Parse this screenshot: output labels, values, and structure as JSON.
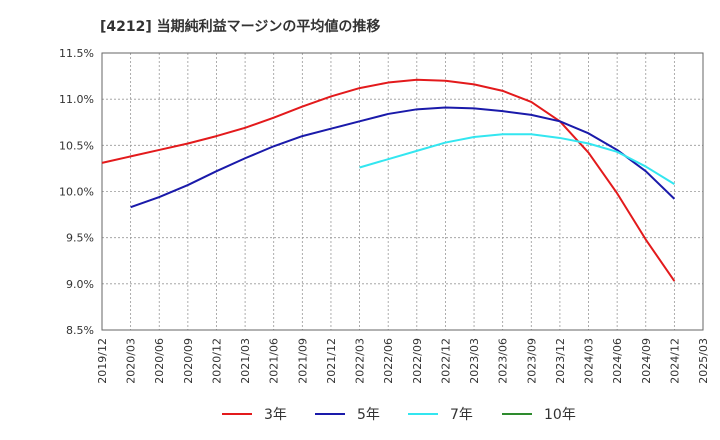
{
  "chart_data": {
    "type": "line",
    "title": "[4212]  当期純利益マージンの平均値の推移",
    "xlabel": "",
    "ylabel": "",
    "ylim": [
      8.5,
      11.5
    ],
    "yticks": [
      "11.5%",
      "11.0%",
      "10.5%",
      "10.0%",
      "9.5%",
      "9.0%",
      "8.5%"
    ],
    "categories": [
      "2019/12",
      "2020/03",
      "2020/06",
      "2020/09",
      "2020/12",
      "2021/03",
      "2021/06",
      "2021/09",
      "2021/12",
      "2022/03",
      "2022/06",
      "2022/09",
      "2022/12",
      "2023/03",
      "2023/06",
      "2023/09",
      "2023/12",
      "2024/03",
      "2024/06",
      "2024/09",
      "2024/12",
      "2025/03"
    ],
    "grid": true,
    "legend_position": "bottom",
    "series": [
      {
        "name": "3年",
        "color": "#e31a1c",
        "values": [
          10.31,
          10.38,
          10.45,
          10.52,
          10.6,
          10.69,
          10.8,
          10.92,
          11.03,
          11.12,
          11.18,
          11.21,
          11.2,
          11.16,
          11.09,
          10.97,
          10.76,
          10.42,
          9.98,
          9.48,
          9.03,
          null
        ]
      },
      {
        "name": "5年",
        "color": "#1a1aaa",
        "values": [
          null,
          9.83,
          9.94,
          10.07,
          10.22,
          10.36,
          10.49,
          10.6,
          10.68,
          10.76,
          10.84,
          10.89,
          10.91,
          10.9,
          10.87,
          10.83,
          10.76,
          10.63,
          10.45,
          10.22,
          9.92,
          null
        ]
      },
      {
        "name": "7年",
        "color": "#33e6f0",
        "values": [
          null,
          null,
          null,
          null,
          null,
          null,
          null,
          null,
          null,
          10.26,
          10.35,
          10.44,
          10.53,
          10.59,
          10.62,
          10.62,
          10.58,
          10.52,
          10.43,
          10.27,
          10.08,
          null
        ]
      },
      {
        "name": "10年",
        "color": "#2e8b2e",
        "values": [
          null,
          null,
          null,
          null,
          null,
          null,
          null,
          null,
          null,
          null,
          null,
          null,
          null,
          null,
          null,
          null,
          null,
          null,
          null,
          null,
          null,
          null
        ]
      }
    ]
  }
}
